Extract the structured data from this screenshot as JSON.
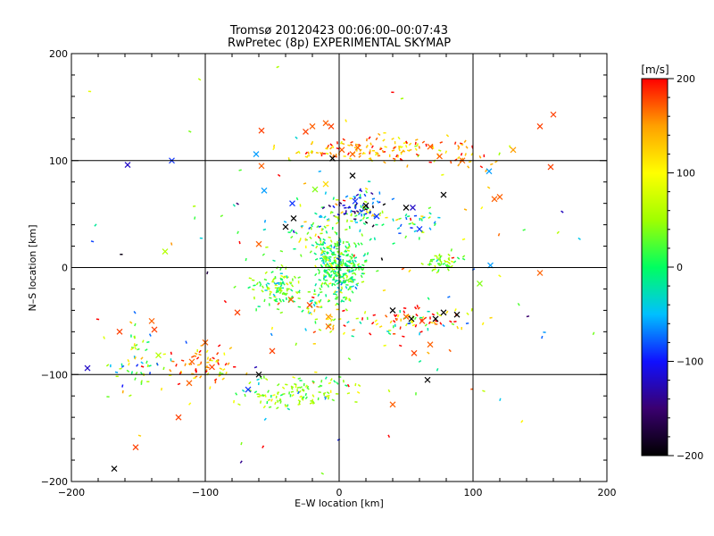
{
  "chart_data": {
    "type": "scatter",
    "title": "Tromsø 20120423 00:06:00–00:07:43",
    "subtitle": "RwPretec (8p) EXPERIMENTAL SKYMAP",
    "xlabel": "E–W location [km]",
    "ylabel": "N–S location [km]",
    "xlim": [
      -200,
      200
    ],
    "ylim": [
      -200,
      200
    ],
    "xticks": [
      -200,
      -100,
      0,
      100,
      200
    ],
    "yticks": [
      -200,
      -100,
      0,
      100,
      200
    ],
    "grid": true,
    "colorbar": {
      "label": "[m/s]",
      "min": -200,
      "max": 200,
      "ticks": [
        200,
        100,
        0,
        -100,
        -200
      ],
      "colors": [
        "#000000",
        "#3a0070",
        "#1010ff",
        "#00c0ff",
        "#00ff60",
        "#a0ff00",
        "#ffff00",
        "#ffa000",
        "#ff0000"
      ]
    },
    "clusters": [
      {
        "x": 0,
        "y": 0,
        "sx": 9,
        "sy": 14,
        "n": 280,
        "v": 10,
        "vs": 35
      },
      {
        "x": 15,
        "y": 55,
        "sx": 12,
        "sy": 8,
        "n": 100,
        "v": -40,
        "vs": 80
      },
      {
        "x": 25,
        "y": 110,
        "sx": 28,
        "sy": 6,
        "n": 120,
        "v": 140,
        "vs": 45
      },
      {
        "x": -45,
        "y": -18,
        "sx": 9,
        "sy": 9,
        "n": 110,
        "v": 25,
        "vs": 35
      },
      {
        "x": -30,
        "y": -118,
        "sx": 20,
        "sy": 8,
        "n": 110,
        "v": 40,
        "vs": 35
      },
      {
        "x": 55,
        "y": -50,
        "sx": 20,
        "sy": 6,
        "n": 80,
        "v": 120,
        "vs": 110
      },
      {
        "x": 78,
        "y": 5,
        "sx": 6,
        "sy": 4,
        "n": 45,
        "v": 45,
        "vs": 30
      },
      {
        "x": -100,
        "y": -92,
        "sx": 12,
        "sy": 8,
        "n": 60,
        "v": 160,
        "vs": 50
      },
      {
        "x": -150,
        "y": -85,
        "sx": 15,
        "sy": 15,
        "n": 55,
        "v": 20,
        "vs": 80
      },
      {
        "x": -15,
        "y": 35,
        "sx": 14,
        "sy": 12,
        "n": 60,
        "v": 40,
        "vs": 60
      },
      {
        "x": 55,
        "y": 40,
        "sx": 8,
        "sy": 6,
        "n": 30,
        "v": 0,
        "vs": 60
      },
      {
        "x": 90,
        "y": 105,
        "sx": 15,
        "sy": 8,
        "n": 30,
        "v": 150,
        "vs": 40
      },
      {
        "x": -10,
        "y": -40,
        "sx": 10,
        "sy": 10,
        "n": 40,
        "v": 60,
        "vs": 60
      },
      {
        "x": 0,
        "y": 0,
        "sx": 90,
        "sy": 85,
        "n": 130,
        "v": 50,
        "vs": 110
      }
    ],
    "crosses": [
      [
        -168,
        -188,
        -200
      ],
      [
        -152,
        -168,
        180
      ],
      [
        -158,
        96,
        -120
      ],
      [
        -125,
        100,
        -90
      ],
      [
        -60,
        22,
        170
      ],
      [
        -40,
        38,
        -200
      ],
      [
        -34,
        46,
        -200
      ],
      [
        -35,
        60,
        -90
      ],
      [
        -18,
        73,
        40
      ],
      [
        -10,
        78,
        120
      ],
      [
        -5,
        102,
        -200
      ],
      [
        2,
        110,
        170
      ],
      [
        10,
        86,
        -200
      ],
      [
        12,
        62,
        -90
      ],
      [
        20,
        58,
        -200
      ],
      [
        28,
        48,
        -90
      ],
      [
        50,
        56,
        -200
      ],
      [
        55,
        56,
        -120
      ],
      [
        60,
        36,
        -90
      ],
      [
        78,
        68,
        -200
      ],
      [
        68,
        113,
        170
      ],
      [
        75,
        104,
        170
      ],
      [
        92,
        100,
        170
      ],
      [
        130,
        110,
        150
      ],
      [
        150,
        132,
        180
      ],
      [
        160,
        143,
        180
      ],
      [
        158,
        94,
        180
      ],
      [
        112,
        90,
        -60
      ],
      [
        116,
        64,
        170
      ],
      [
        120,
        66,
        170
      ],
      [
        113,
        2,
        -60
      ],
      [
        105,
        -15,
        40
      ],
      [
        40,
        -40,
        -200
      ],
      [
        50,
        -46,
        170
      ],
      [
        54,
        -48,
        -200
      ],
      [
        62,
        -50,
        180
      ],
      [
        72,
        -48,
        -200
      ],
      [
        78,
        -42,
        -200
      ],
      [
        88,
        -44,
        -200
      ],
      [
        56,
        -80,
        180
      ],
      [
        68,
        -72,
        170
      ],
      [
        66,
        -105,
        -200
      ],
      [
        40,
        -128,
        170
      ],
      [
        -60,
        -100,
        -200
      ],
      [
        -68,
        -114,
        -90
      ],
      [
        -110,
        -88,
        170
      ],
      [
        -95,
        -93,
        180
      ],
      [
        -100,
        -70,
        170
      ],
      [
        -112,
        -108,
        170
      ],
      [
        -164,
        -60,
        180
      ],
      [
        -135,
        -82,
        60
      ],
      [
        -188,
        -94,
        -120
      ],
      [
        -140,
        -50,
        170
      ],
      [
        -138,
        -58,
        180
      ],
      [
        -76,
        -42,
        180
      ],
      [
        -36,
        -30,
        170
      ],
      [
        -22,
        -35,
        180
      ],
      [
        -8,
        -46,
        150
      ],
      [
        -8,
        -55,
        170
      ],
      [
        -58,
        128,
        180
      ],
      [
        -58,
        95,
        170
      ],
      [
        -62,
        106,
        -60
      ],
      [
        -25,
        127,
        180
      ],
      [
        -20,
        132,
        170
      ],
      [
        -10,
        135,
        170
      ],
      [
        -6,
        132,
        180
      ],
      [
        14,
        112,
        170
      ],
      [
        10,
        106,
        170
      ],
      [
        -56,
        72,
        -60
      ],
      [
        -130,
        15,
        60
      ],
      [
        150,
        -5,
        170
      ],
      [
        -120,
        -140,
        180
      ],
      [
        -50,
        -78,
        180
      ]
    ]
  }
}
